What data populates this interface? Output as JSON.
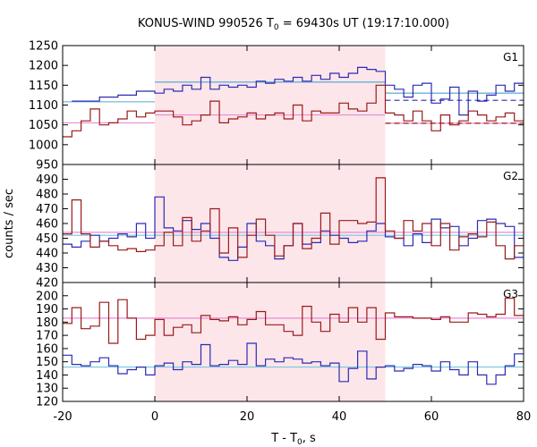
{
  "chart_data": {
    "type": "line",
    "subtype": "step",
    "title": "KONUS-WIND 990526 T",
    "title_sub": "0",
    "title_rest": " = 69430s UT (19:17:10.000)",
    "xlabel": "T - T",
    "xlabel_sub": "0",
    "xlabel_rest": ", s",
    "ylabel": "counts / sec",
    "xlim": [
      -20,
      80
    ],
    "xticks": [
      -20,
      0,
      20,
      40,
      60,
      80
    ],
    "highlight_interval": [
      0,
      50
    ],
    "colors": {
      "blue": "#2b2bb3",
      "red": "#9a1a1a",
      "cyan": "#77c6de",
      "pink": "#e88ad6",
      "highlight": "#fde6ea"
    },
    "panels": [
      {
        "label": "G1",
        "ylim": [
          950,
          1250
        ],
        "yticks": [
          950,
          1000,
          1050,
          1100,
          1150,
          1200,
          1250
        ],
        "series": [
          {
            "color": "blue",
            "edges": [
              -18,
              -12,
              -8,
              -4,
              0,
              2,
              4,
              6,
              8,
              10,
              12,
              14,
              16,
              18,
              20,
              22,
              24,
              26,
              28,
              30,
              32,
              34,
              36,
              38,
              40,
              42,
              44,
              46,
              48,
              50,
              52,
              54,
              56,
              58,
              60,
              62,
              64,
              66,
              68,
              70,
              72,
              74,
              76,
              78,
              80
            ],
            "values": [
              1110,
              1120,
              1125,
              1135,
              1130,
              1140,
              1135,
              1150,
              1140,
              1170,
              1140,
              1150,
              1145,
              1150,
              1145,
              1160,
              1155,
              1165,
              1160,
              1170,
              1160,
              1175,
              1165,
              1180,
              1170,
              1180,
              1195,
              1190,
              1185,
              1150,
              1140,
              1120,
              1150,
              1155,
              1105,
              1115,
              1145,
              1075,
              1135,
              1110,
              1125,
              1150,
              1135,
              1155
            ]
          },
          {
            "color": "red",
            "edges": [
              -20,
              -18,
              -16,
              -14,
              -12,
              -10,
              -8,
              -6,
              -4,
              -2,
              0,
              2,
              4,
              6,
              8,
              10,
              12,
              14,
              16,
              18,
              20,
              22,
              24,
              26,
              28,
              30,
              32,
              34,
              36,
              38,
              40,
              42,
              44,
              46,
              48,
              50,
              52,
              54,
              56,
              58,
              60,
              62,
              64,
              66,
              68,
              70,
              72,
              74,
              76,
              78,
              80
            ],
            "values": [
              1020,
              1035,
              1060,
              1090,
              1050,
              1055,
              1065,
              1085,
              1070,
              1080,
              1085,
              1085,
              1070,
              1050,
              1060,
              1075,
              1110,
              1055,
              1065,
              1070,
              1080,
              1065,
              1075,
              1080,
              1065,
              1100,
              1060,
              1085,
              1080,
              1080,
              1105,
              1090,
              1085,
              1105,
              1150,
              1080,
              1075,
              1060,
              1085,
              1060,
              1035,
              1075,
              1050,
              1060,
              1085,
              1075,
              1060,
              1070,
              1080,
              1060
            ]
          }
        ],
        "levels": [
          {
            "color": "blue",
            "style": "solid",
            "segments": [
              [
                -20,
                0,
                1108
              ],
              [
                0,
                50,
                1158
              ],
              [
                50,
                80,
                1130
              ]
            ]
          },
          {
            "color": "blue",
            "style": "dashed",
            "segments": [
              [
                50,
                80,
                1112
              ]
            ]
          },
          {
            "color": "cyan",
            "style": "solid",
            "segments": [
              [
                -20,
                0,
                1108
              ],
              [
                0,
                50,
                1158
              ],
              [
                50,
                80,
                1130
              ]
            ]
          },
          {
            "color": "pink",
            "style": "solid",
            "segments": [
              [
                -20,
                0,
                1055
              ],
              [
                0,
                50,
                1075
              ],
              [
                50,
                80,
                1054
              ]
            ]
          },
          {
            "color": "red",
            "style": "dashed",
            "segments": [
              [
                50,
                80,
                1054
              ]
            ]
          }
        ]
      },
      {
        "label": "G2",
        "ylim": [
          420,
          500
        ],
        "yticks": [
          420,
          430,
          440,
          450,
          460,
          470,
          480,
          490
        ],
        "series": [
          {
            "color": "blue",
            "edges": [
              -20,
              -18,
              -16,
              -14,
              -12,
              -10,
              -8,
              -6,
              -4,
              -2,
              0,
              2,
              4,
              6,
              8,
              10,
              12,
              14,
              16,
              18,
              20,
              22,
              24,
              26,
              28,
              30,
              32,
              34,
              36,
              38,
              40,
              42,
              44,
              46,
              48,
              50,
              52,
              54,
              56,
              58,
              60,
              62,
              64,
              66,
              68,
              70,
              72,
              74,
              76,
              78,
              80
            ],
            "values": [
              446,
              444,
              448,
              452,
              448,
              450,
              453,
              451,
              460,
              450,
              478,
              457,
              455,
              462,
              456,
              460,
              450,
              437,
              435,
              444,
              460,
              448,
              445,
              436,
              445,
              460,
              446,
              447,
              455,
              452,
              450,
              447,
              448,
              455,
              460,
              451,
              450,
              445,
              453,
              447,
              463,
              457,
              458,
              445,
              450,
              462,
              463,
              460,
              458,
              437
            ]
          },
          {
            "color": "red",
            "edges": [
              -20,
              -18,
              -16,
              -14,
              -12,
              -10,
              -8,
              -6,
              -4,
              -2,
              0,
              2,
              4,
              6,
              8,
              10,
              12,
              14,
              16,
              18,
              20,
              22,
              24,
              26,
              28,
              30,
              32,
              34,
              36,
              38,
              40,
              42,
              44,
              46,
              48,
              50,
              52,
              54,
              56,
              58,
              60,
              62,
              64,
              66,
              68,
              70,
              72,
              74,
              76,
              78,
              80
            ],
            "values": [
              453,
              476,
              453,
              444,
              448,
              445,
              442,
              443,
              441,
              442,
              445,
              454,
              445,
              464,
              448,
              455,
              470,
              440,
              457,
              437,
              452,
              463,
              452,
              438,
              445,
              460,
              443,
              450,
              467,
              446,
              462,
              462,
              460,
              461,
              491,
              455,
              450,
              462,
              455,
              460,
              445,
              460,
              442,
              451,
              453,
              451,
              461,
              445,
              436,
              445
            ]
          }
        ],
        "levels": [
          {
            "color": "cyan",
            "style": "solid",
            "segments": [
              [
                -20,
                80,
                452
              ]
            ]
          },
          {
            "color": "pink",
            "style": "solid",
            "segments": [
              [
                -20,
                80,
                454
              ]
            ]
          }
        ]
      },
      {
        "label": "G3",
        "ylim": [
          120,
          210
        ],
        "yticks": [
          120,
          130,
          140,
          150,
          160,
          170,
          180,
          190,
          200
        ],
        "series": [
          {
            "color": "red",
            "edges": [
              -20,
              -18,
              -16,
              -14,
              -12,
              -10,
              -8,
              -6,
              -4,
              -2,
              0,
              2,
              4,
              6,
              8,
              10,
              12,
              14,
              16,
              18,
              20,
              22,
              24,
              26,
              28,
              30,
              32,
              34,
              36,
              38,
              40,
              42,
              44,
              46,
              48,
              50,
              52,
              54,
              56,
              58,
              60,
              62,
              64,
              66,
              68,
              70,
              72,
              74,
              76,
              78,
              80
            ],
            "values": [
              179,
              191,
              175,
              177,
              195,
              164,
              197,
              183,
              167,
              170,
              182,
              170,
              176,
              178,
              172,
              185,
              182,
              181,
              184,
              178,
              182,
              188,
              178,
              178,
              173,
              170,
              192,
              180,
              173,
              186,
              180,
              191,
              180,
              191,
              167,
              187,
              184,
              184,
              183,
              183,
              182,
              184,
              180,
              180,
              187,
              186,
              184,
              186,
              198,
              185
            ]
          },
          {
            "color": "blue",
            "edges": [
              -20,
              -18,
              -16,
              -14,
              -12,
              -10,
              -8,
              -6,
              -4,
              -2,
              0,
              2,
              4,
              6,
              8,
              10,
              12,
              14,
              16,
              18,
              20,
              22,
              24,
              26,
              28,
              30,
              32,
              34,
              36,
              38,
              40,
              42,
              44,
              46,
              48,
              50,
              52,
              54,
              56,
              58,
              60,
              62,
              64,
              66,
              68,
              70,
              72,
              74,
              76,
              78,
              80
            ],
            "values": [
              155,
              148,
              147,
              150,
              153,
              147,
              141,
              144,
              146,
              140,
              147,
              149,
              144,
              150,
              148,
              163,
              147,
              148,
              151,
              148,
              164,
              147,
              152,
              150,
              153,
              152,
              149,
              150,
              147,
              149,
              135,
              145,
              158,
              137,
              146,
              147,
              143,
              145,
              148,
              147,
              143,
              150,
              144,
              140,
              150,
              140,
              133,
              140,
              147,
              156
            ]
          }
        ],
        "levels": [
          {
            "color": "pink",
            "style": "solid",
            "segments": [
              [
                -20,
                80,
                183
              ]
            ]
          },
          {
            "color": "cyan",
            "style": "solid",
            "segments": [
              [
                -20,
                80,
                146
              ]
            ]
          }
        ]
      }
    ]
  }
}
